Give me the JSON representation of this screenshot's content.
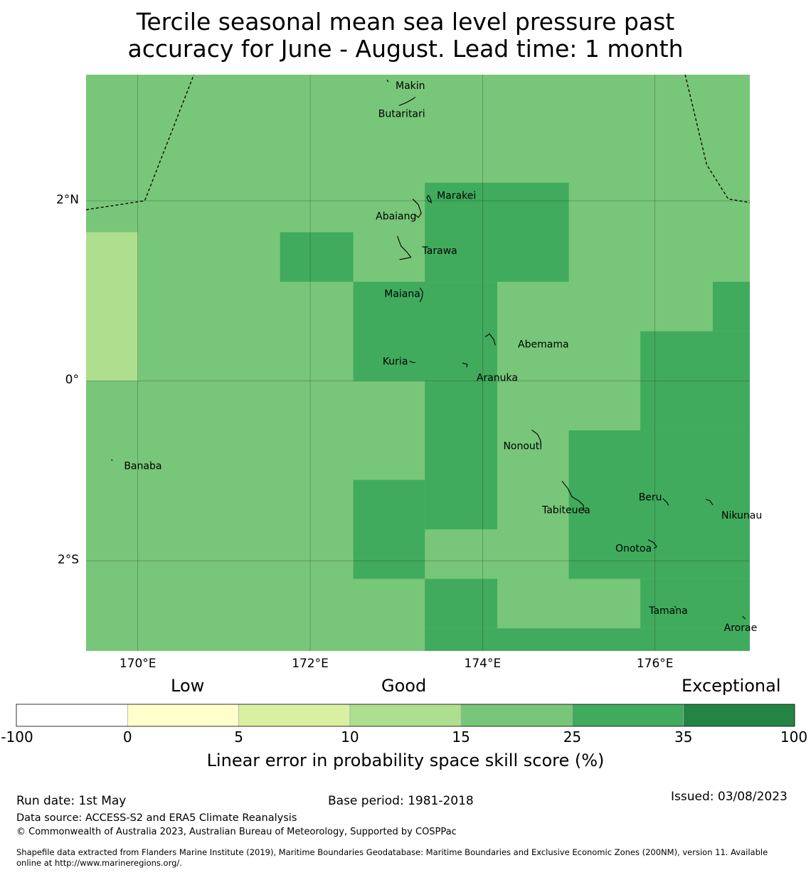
{
  "title": {
    "line1": "Tercile seasonal mean sea level pressure past",
    "line2": "accuracy for June - August. Lead time: 1 month"
  },
  "map": {
    "lon_range": [
      169.4,
      177.1
    ],
    "lat_range": [
      -3.0,
      3.4
    ],
    "grid_lons": [
      170,
      172,
      174,
      176
    ],
    "grid_lats": [
      2,
      0,
      -2
    ],
    "lon_labels": [
      "170°E",
      "172°E",
      "174°E",
      "176°E"
    ],
    "lat_labels": [
      "2°N",
      "0°",
      "2°S"
    ],
    "skill_colors": {
      "c10_15": "#addf8e",
      "c15_25": "#78c679",
      "c25_35": "#41ab5d"
    },
    "cells": [
      {
        "lon": [
          169.4,
          170.0
        ],
        "lat": [
          0.0,
          1.65
        ],
        "cat": "c10_15"
      },
      {
        "lon": [
          171.65,
          172.5
        ],
        "lat": [
          1.1,
          1.65
        ],
        "cat": "c25_35"
      },
      {
        "lon": [
          173.33,
          175.0
        ],
        "lat": [
          1.1,
          2.2
        ],
        "cat": "c25_35"
      },
      {
        "lon": [
          172.5,
          174.17
        ],
        "lat": [
          0.0,
          1.1
        ],
        "cat": "c25_35"
      },
      {
        "lon": [
          173.33,
          174.17
        ],
        "lat": [
          -1.65,
          0.0
        ],
        "cat": "c25_35"
      },
      {
        "lon": [
          172.5,
          173.33
        ],
        "lat": [
          -2.2,
          -1.1
        ],
        "cat": "c25_35"
      },
      {
        "lon": [
          173.33,
          174.17
        ],
        "lat": [
          -3.0,
          -2.75
        ],
        "cat": "c25_35"
      },
      {
        "lon": [
          174.17,
          177.1
        ],
        "lat": [
          -3.0,
          -2.75
        ],
        "cat": "c25_35"
      },
      {
        "lon": [
          175.0,
          177.1
        ],
        "lat": [
          -2.2,
          -0.55
        ],
        "cat": "c25_35"
      },
      {
        "lon": [
          175.83,
          177.1
        ],
        "lat": [
          -0.55,
          0.55
        ],
        "cat": "c25_35"
      },
      {
        "lon": [
          176.67,
          177.1
        ],
        "lat": [
          0.55,
          1.1
        ],
        "cat": "c25_35"
      },
      {
        "lon": [
          175.83,
          177.1
        ],
        "lat": [
          -2.75,
          -2.2
        ],
        "cat": "c25_35"
      },
      {
        "lon": [
          173.33,
          174.17
        ],
        "lat": [
          -2.75,
          -2.2
        ],
        "cat": "c25_35"
      }
    ],
    "eez_boundaries": [
      [
        [
          169.4,
          1.9
        ],
        [
          170.08,
          2.0
        ],
        [
          170.65,
          3.4
        ]
      ],
      [
        [
          176.35,
          3.4
        ],
        [
          176.6,
          2.4
        ],
        [
          176.85,
          2.02
        ],
        [
          177.1,
          1.98
        ]
      ]
    ],
    "islands": [
      {
        "name": "Makin",
        "lon": 172.99,
        "lat": 3.28
      },
      {
        "name": "Butaritari",
        "lon": 172.79,
        "lat": 2.97
      },
      {
        "name": "Marakei",
        "lon": 173.47,
        "lat": 2.06
      },
      {
        "name": "Abaiang",
        "lon": 172.76,
        "lat": 1.83
      },
      {
        "name": "Tarawa",
        "lon": 173.3,
        "lat": 1.45
      },
      {
        "name": "Maiana",
        "lon": 172.86,
        "lat": 0.97
      },
      {
        "name": "Abemama",
        "lon": 174.41,
        "lat": 0.41
      },
      {
        "name": "Kuria",
        "lon": 172.84,
        "lat": 0.22
      },
      {
        "name": "Aranuka",
        "lon": 173.93,
        "lat": 0.04
      },
      {
        "name": "Nonouti",
        "lon": 174.24,
        "lat": -0.72
      },
      {
        "name": "Banaba",
        "lon": 169.84,
        "lat": -0.94
      },
      {
        "name": "Tabiteuea",
        "lon": 174.69,
        "lat": -1.43
      },
      {
        "name": "Beru",
        "lon": 175.81,
        "lat": -1.29
      },
      {
        "name": "Nikunau",
        "lon": 176.77,
        "lat": -1.49
      },
      {
        "name": "Onotoa",
        "lon": 175.54,
        "lat": -1.86
      },
      {
        "name": "Tamana",
        "lon": 175.93,
        "lat": -2.55
      },
      {
        "name": "Arorae",
        "lon": 176.8,
        "lat": -2.74
      }
    ]
  },
  "legend": {
    "category_labels": [
      "Low",
      "Good",
      "Exceptional"
    ],
    "bins": [
      {
        "from": "-100",
        "to": "0",
        "color": "#ffffff"
      },
      {
        "from": "0",
        "to": "5",
        "color": "#ffffcc"
      },
      {
        "from": "5",
        "to": "10",
        "color": "#d9f0a3"
      },
      {
        "from": "10",
        "to": "15",
        "color": "#addf8e"
      },
      {
        "from": "15",
        "to": "25",
        "color": "#78c679"
      },
      {
        "from": "25",
        "to": "35",
        "color": "#41ab5d"
      },
      {
        "from": "35",
        "to": "100",
        "color": "#238443"
      }
    ],
    "tick_labels": [
      "-100",
      "0",
      "5",
      "10",
      "15",
      "25",
      "35",
      "100"
    ],
    "title": "Linear error in probability space skill score (%)"
  },
  "footer": {
    "run_date": "Run date: 1st May",
    "base_period": "Base period: 1981-2018",
    "issued": "Issued: 03/08/2023",
    "data_source": "Data source: ACCESS-S2 and ERA5 Climate Reanalysis",
    "copyright": "© Commonwealth of Australia 2023, Australian Bureau of Meteorology, Supported by COSPPac",
    "shapefile_line1": "Shapefile data extracted from Flanders Marine Institute (2019), Maritime Boundaries Geodatabase: Maritime Boundaries and Exclusive Economic Zones (200NM), version 11. Available",
    "shapefile_line2": "online at http://www.marineregions.org/."
  }
}
